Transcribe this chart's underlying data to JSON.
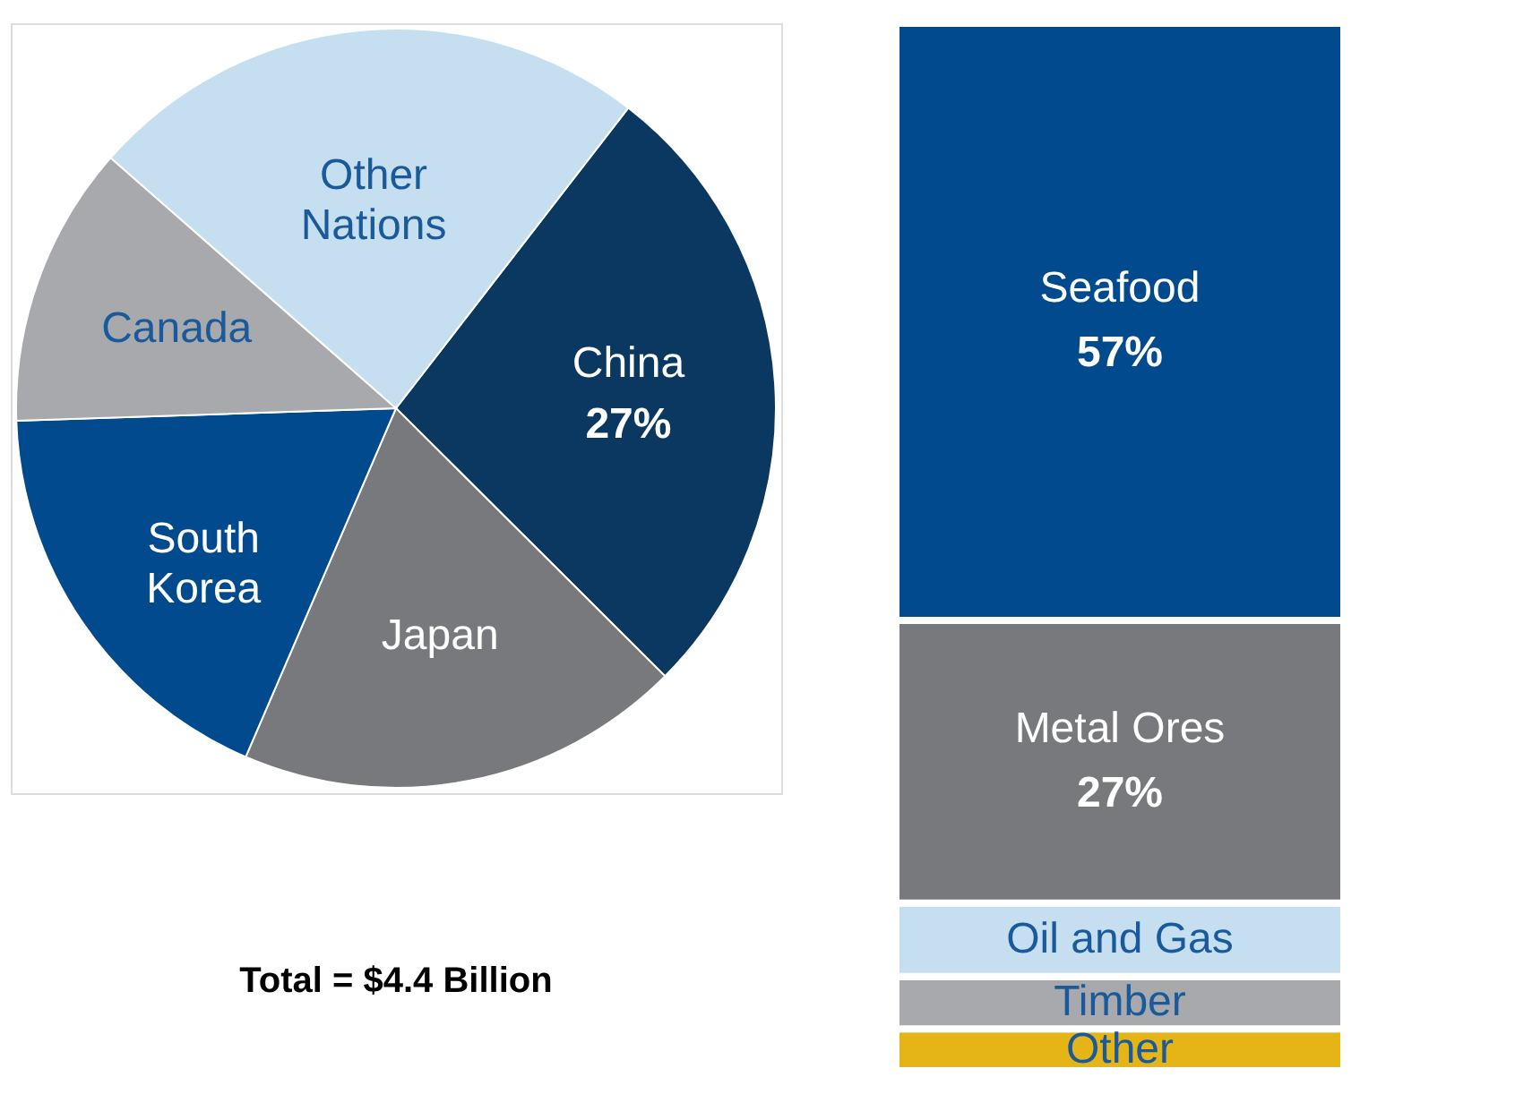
{
  "chart_data": [
    {
      "type": "pie",
      "categories": [
        "China",
        "Japan",
        "South Korea",
        "Canada",
        "Other Nations"
      ],
      "values": [
        27,
        19,
        18,
        12,
        24
      ],
      "colors": [
        "#0b3861",
        "#77797c",
        "#004a8d",
        "#a7a9ac",
        "#c5dff0"
      ],
      "value_labels": [
        "27%",
        null,
        null,
        null,
        null
      ],
      "legend": false,
      "annotations": [
        "Total = $4.4 Billion"
      ]
    },
    {
      "type": "bar",
      "stacked": true,
      "categories": [
        null
      ],
      "series": [
        {
          "name": "Other",
          "color": "#e5b517",
          "values": [
            4
          ],
          "value_labels": [
            null
          ]
        },
        {
          "name": "Timber",
          "color": "#a7a9ac",
          "values": [
            5
          ],
          "value_labels": [
            null
          ]
        },
        {
          "name": "Oil and Gas",
          "color": "#c5dff0",
          "values": [
            7
          ],
          "value_labels": [
            null
          ]
        },
        {
          "name": "Metal Ores",
          "color": "#77797c",
          "values": [
            27
          ],
          "value_labels": [
            "27%"
          ]
        },
        {
          "name": "Seafood",
          "color": "#004a8d",
          "values": [
            57
          ],
          "value_labels": [
            "57%"
          ]
        }
      ]
    }
  ]
}
